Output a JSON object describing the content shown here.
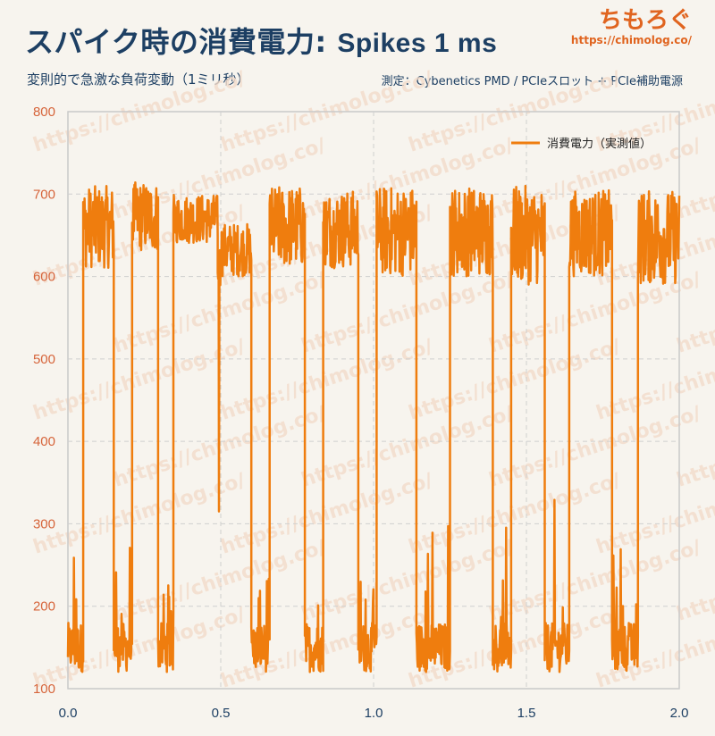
{
  "header": {
    "title_jp": "スパイク時の消費電力",
    "title_sep": ":",
    "title_en": "Spikes 1 ms",
    "subtitle": "変則的で急激な負荷変動（1ミリ秒）",
    "measurement": "測定：Cybenetics PMD / PCIeスロット + PCIe補助電源",
    "logo_text": "ちもろぐ",
    "logo_url": "https://chimolog.co/"
  },
  "watermark": {
    "text": "https://chimolog.co/"
  },
  "colors": {
    "line": "#ef7d0e",
    "y_ticks": "#d6643a",
    "x_ticks": "#1d3f63",
    "title": "#1d3f63",
    "logo": "#e0641f"
  },
  "chart_data": {
    "type": "line",
    "title": "スパイク時の消費電力 : Spikes 1 ms",
    "xlabel": "",
    "ylabel": "",
    "xlim": [
      0.0,
      2.0
    ],
    "ylim": [
      100,
      800
    ],
    "x_ticks": [
      "0.0",
      "0.5",
      "1.0",
      "1.5",
      "2.0"
    ],
    "y_ticks": [
      "100",
      "200",
      "300",
      "400",
      "500",
      "600",
      "700",
      "800"
    ],
    "grid": true,
    "legend_position": "top-right",
    "series": [
      {
        "name": "消費電力（実測値）",
        "color": "#ef7d0e",
        "segments": [
          {
            "start": 0.0,
            "end": 0.05,
            "level": "low",
            "max": 275
          },
          {
            "start": 0.05,
            "end": 0.15,
            "level": "high",
            "min": 610,
            "max": 710
          },
          {
            "start": 0.15,
            "end": 0.21,
            "level": "low",
            "max": 280
          },
          {
            "start": 0.21,
            "end": 0.295,
            "level": "high",
            "min": 630,
            "max": 715
          },
          {
            "start": 0.295,
            "end": 0.345,
            "level": "low",
            "max": 245
          },
          {
            "start": 0.345,
            "end": 0.49,
            "level": "high",
            "min": 640,
            "max": 700
          },
          {
            "start": 0.49,
            "end": 0.5,
            "level": "dip",
            "min": 315
          },
          {
            "start": 0.5,
            "end": 0.6,
            "level": "high",
            "min": 600,
            "max": 665
          },
          {
            "start": 0.6,
            "end": 0.66,
            "level": "low",
            "max": 240
          },
          {
            "start": 0.66,
            "end": 0.775,
            "level": "high",
            "min": 610,
            "max": 710
          },
          {
            "start": 0.775,
            "end": 0.835,
            "level": "low",
            "max": 245
          },
          {
            "start": 0.835,
            "end": 0.95,
            "level": "high",
            "min": 610,
            "max": 705
          },
          {
            "start": 0.95,
            "end": 1.01,
            "level": "low",
            "max": 245
          },
          {
            "start": 1.01,
            "end": 1.14,
            "level": "high",
            "min": 600,
            "max": 710
          },
          {
            "start": 1.14,
            "end": 1.25,
            "level": "low",
            "max": 305
          },
          {
            "start": 1.25,
            "end": 1.39,
            "level": "high",
            "min": 600,
            "max": 710
          },
          {
            "start": 1.39,
            "end": 1.45,
            "level": "low",
            "max": 300
          },
          {
            "start": 1.45,
            "end": 1.56,
            "level": "high",
            "min": 590,
            "max": 710
          },
          {
            "start": 1.56,
            "end": 1.64,
            "level": "low",
            "max": 330
          },
          {
            "start": 1.64,
            "end": 1.78,
            "level": "high",
            "min": 600,
            "max": 705
          },
          {
            "start": 1.78,
            "end": 1.865,
            "level": "low",
            "max": 300
          },
          {
            "start": 1.865,
            "end": 2.0,
            "level": "high",
            "min": 590,
            "max": 705
          }
        ]
      }
    ]
  }
}
